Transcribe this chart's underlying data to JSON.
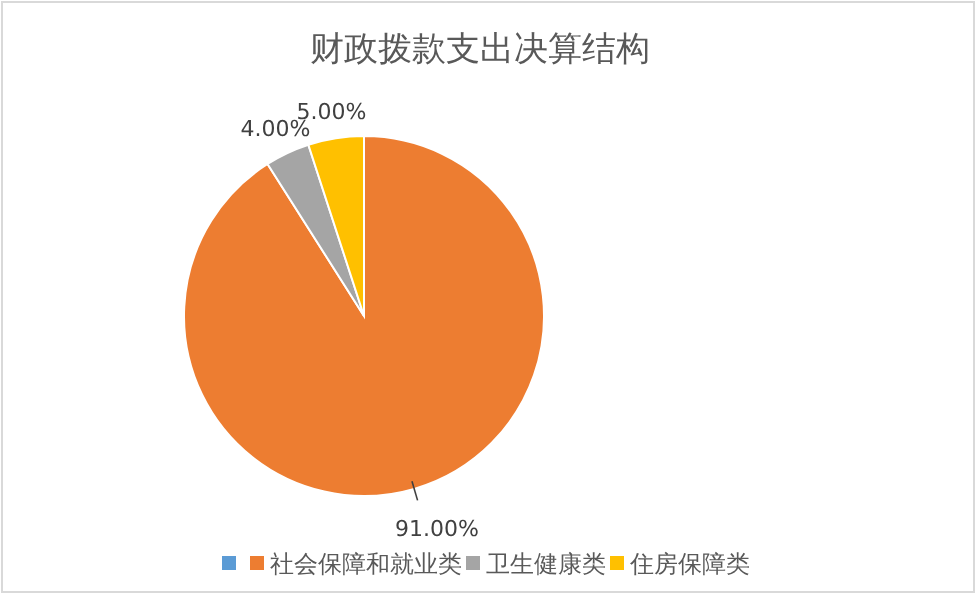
{
  "chart_data": {
    "type": "pie",
    "title": "财政拨款支出决算结构",
    "categories": [
      null,
      "社会保障和就业类",
      "卫生健康类",
      "住房保障类"
    ],
    "values": [
      0,
      91,
      4,
      5
    ],
    "colors": [
      "#5b9bd5",
      "#ed7d31",
      "#a5a5a5",
      "#ffc000"
    ],
    "value_labels": [
      null,
      "91.00%",
      "4.00%",
      "5.00%"
    ],
    "legend": "bottom"
  }
}
